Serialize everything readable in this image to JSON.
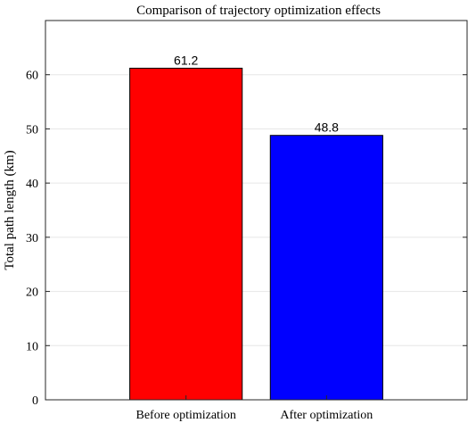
{
  "chart_data": {
    "type": "bar",
    "title": "Comparison of trajectory optimization effects",
    "xlabel": "",
    "ylabel": "Total path length (km)",
    "categories": [
      "Before optimization",
      "After optimization"
    ],
    "values": [
      61.2,
      48.8
    ],
    "data_labels": [
      "61.2",
      "48.8"
    ],
    "bar_colors": [
      "#ff0000",
      "#0000ff"
    ],
    "ylim": [
      0,
      70
    ],
    "yticks": [
      0,
      10,
      20,
      30,
      40,
      50,
      60
    ],
    "grid": true,
    "legend": "none"
  }
}
